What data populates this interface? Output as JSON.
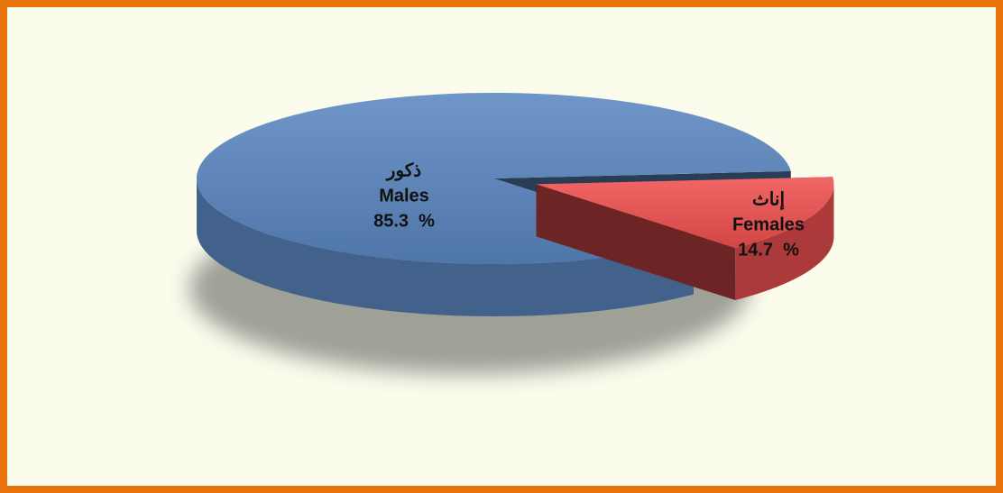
{
  "chart_data": {
    "type": "pie",
    "categories": [
      "Males",
      "Females"
    ],
    "categories_ar": [
      "ذكور",
      "إناث"
    ],
    "values": [
      85.3,
      14.7
    ],
    "value_labels": [
      "85.3  %",
      "14.7  %"
    ],
    "colors": [
      "#5b87c1",
      "#f05050"
    ]
  }
}
